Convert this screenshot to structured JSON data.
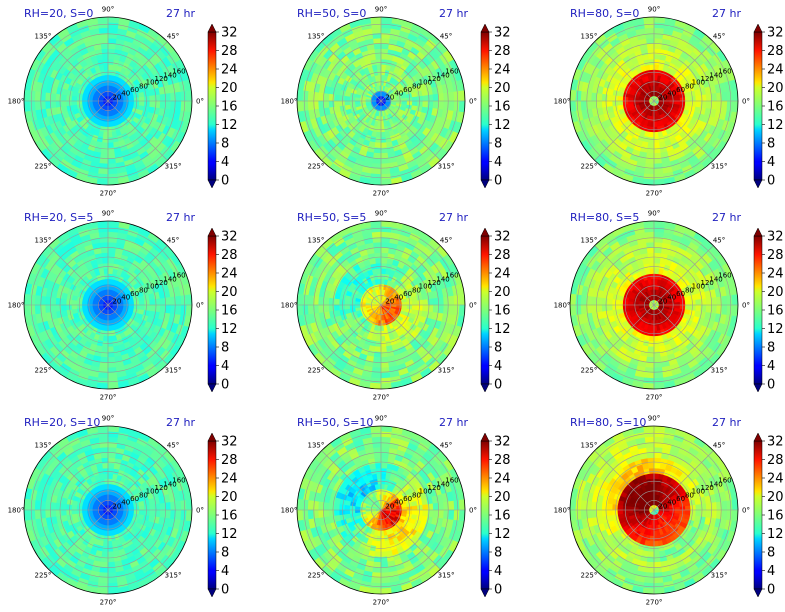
{
  "colors": {
    "title": "#1f1fbf",
    "colormap": "jet",
    "grid": "#9a9a9a"
  },
  "chart_data": {
    "type": "heatmap",
    "subtype": "polar-contourf",
    "time_label": "27 hr",
    "angle_tick_labels": [
      "0°",
      "45°",
      "90°",
      "135°",
      "180°",
      "225°",
      "270°",
      "315°"
    ],
    "radial_tick_labels": [
      "20",
      "40",
      "60",
      "80",
      "100",
      "120",
      "140",
      "160"
    ],
    "colorbar": {
      "ticks": [
        "0",
        "4",
        "8",
        "12",
        "16",
        "20",
        "24",
        "28",
        "32"
      ],
      "range": [
        0,
        32
      ],
      "extend": "both"
    },
    "panels": [
      {
        "title": "RH=20, S=0",
        "rh": 20,
        "shear": 0
      },
      {
        "title": "RH=50, S=0",
        "rh": 50,
        "shear": 0
      },
      {
        "title": "RH=80, S=0",
        "rh": 80,
        "shear": 0
      },
      {
        "title": "RH=20, S=5",
        "rh": 20,
        "shear": 5
      },
      {
        "title": "RH=50, S=5",
        "rh": 50,
        "shear": 5
      },
      {
        "title": "RH=80, S=5",
        "rh": 80,
        "shear": 5
      },
      {
        "title": "RH=20, S=10",
        "rh": 20,
        "shear": 10
      },
      {
        "title": "RH=50, S=10",
        "rh": 50,
        "shear": 10
      },
      {
        "title": "RH=80, S=10",
        "rh": 80,
        "shear": 10
      }
    ]
  }
}
